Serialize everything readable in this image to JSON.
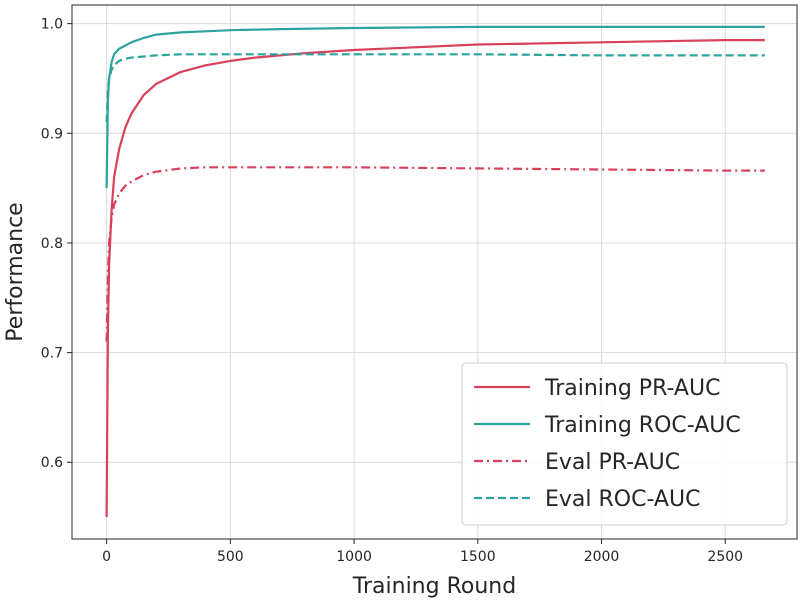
{
  "chart_data": {
    "type": "line",
    "title": "",
    "xlabel": "Training Round",
    "ylabel": "Performance",
    "xlim": [
      -140,
      2790
    ],
    "ylim": [
      0.53,
      1.017
    ],
    "xticks": [
      0,
      500,
      1000,
      1500,
      2000,
      2500
    ],
    "xtick_labels": [
      "0",
      "500",
      "1000",
      "1500",
      "2000",
      "2500"
    ],
    "yticks": [
      0.6,
      0.7,
      0.8,
      0.9,
      1.0
    ],
    "ytick_labels": [
      "0.6",
      "0.7",
      "0.8",
      "0.9",
      "1.0"
    ],
    "grid": true,
    "legend_position": "lower-right",
    "series": [
      {
        "name": "Training PR-AUC",
        "color": "#d7415c",
        "style": "solid",
        "x": [
          0,
          5,
          10,
          20,
          30,
          50,
          75,
          100,
          150,
          200,
          300,
          400,
          500,
          600,
          800,
          1000,
          1500,
          2000,
          2500,
          2660
        ],
        "y": [
          0.55,
          0.72,
          0.78,
          0.83,
          0.86,
          0.885,
          0.905,
          0.918,
          0.935,
          0.945,
          0.956,
          0.962,
          0.966,
          0.969,
          0.973,
          0.976,
          0.981,
          0.983,
          0.985,
          0.985
        ]
      },
      {
        "name": "Training ROC-AUC",
        "color": "#2ca39d",
        "style": "solid",
        "x": [
          0,
          5,
          10,
          20,
          30,
          50,
          75,
          100,
          150,
          200,
          300,
          400,
          500,
          700,
          1000,
          1500,
          2000,
          2500,
          2660
        ],
        "y": [
          0.85,
          0.93,
          0.95,
          0.965,
          0.972,
          0.977,
          0.98,
          0.983,
          0.987,
          0.99,
          0.992,
          0.993,
          0.994,
          0.995,
          0.996,
          0.997,
          0.997,
          0.997,
          0.997
        ]
      },
      {
        "name": "Eval PR-AUC",
        "color": "#d7415c",
        "style": "dashdot",
        "x": [
          0,
          5,
          10,
          20,
          30,
          50,
          75,
          100,
          150,
          200,
          300,
          400,
          500,
          650,
          800,
          1000,
          1500,
          2000,
          2500,
          2660
        ],
        "y": [
          0.71,
          0.77,
          0.8,
          0.823,
          0.835,
          0.845,
          0.852,
          0.856,
          0.862,
          0.865,
          0.868,
          0.869,
          0.869,
          0.869,
          0.869,
          0.869,
          0.868,
          0.867,
          0.866,
          0.866
        ]
      },
      {
        "name": "Eval ROC-AUC",
        "color": "#2ca39d",
        "style": "dashed",
        "x": [
          0,
          5,
          10,
          20,
          30,
          50,
          75,
          100,
          150,
          200,
          300,
          400,
          500,
          700,
          1000,
          1500,
          2000,
          2500,
          2660
        ],
        "y": [
          0.91,
          0.94,
          0.95,
          0.958,
          0.962,
          0.966,
          0.968,
          0.969,
          0.97,
          0.971,
          0.972,
          0.972,
          0.972,
          0.972,
          0.972,
          0.972,
          0.971,
          0.971,
          0.971
        ]
      }
    ]
  }
}
